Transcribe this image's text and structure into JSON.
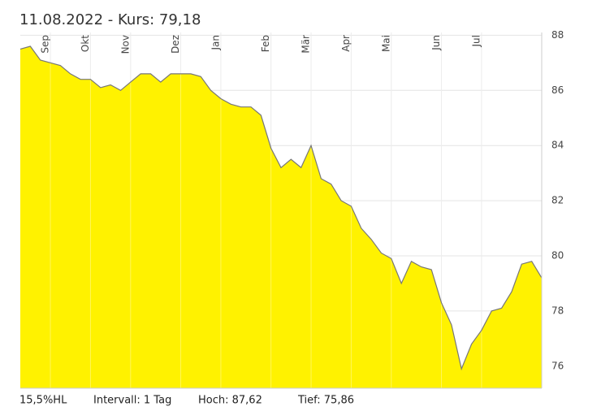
{
  "chart_data": {
    "type": "area",
    "title": "11.08.2022  -  Kurs: 79,18",
    "categories": [
      null,
      null,
      null,
      "Sep",
      null,
      null,
      null,
      "Okt",
      null,
      null,
      null,
      "Nov",
      null,
      null,
      null,
      null,
      "Dez",
      null,
      null,
      null,
      "Jan",
      null,
      null,
      null,
      null,
      "Feb",
      null,
      null,
      null,
      "Mär",
      null,
      null,
      null,
      "Apr",
      null,
      null,
      null,
      "Mai",
      null,
      null,
      null,
      null,
      "Jun",
      null,
      null,
      null,
      "Jul",
      null,
      null,
      null,
      null,
      null,
      null
    ],
    "values": [
      87.5,
      87.6,
      87.1,
      87.0,
      86.9,
      86.6,
      86.4,
      86.4,
      86.1,
      86.2,
      86.0,
      86.3,
      86.6,
      86.6,
      86.3,
      86.6,
      86.6,
      86.6,
      86.5,
      86.0,
      85.7,
      85.5,
      85.4,
      85.4,
      85.1,
      83.9,
      83.2,
      83.5,
      83.2,
      84.0,
      82.8,
      82.6,
      82.0,
      81.8,
      81.0,
      80.6,
      80.1,
      79.9,
      79.0,
      79.8,
      79.6,
      79.5,
      78.3,
      77.5,
      75.9,
      76.8,
      77.3,
      78.0,
      78.1,
      78.7,
      79.7,
      79.8,
      79.2
    ],
    "color": "#fff200",
    "line_color": "#777777",
    "ylim": [
      75.2,
      88.1
    ],
    "yticks": [
      76,
      78,
      80,
      82,
      84,
      86,
      88
    ],
    "grid": true,
    "footer": [
      "15,5%HL",
      "Intervall: 1 Tag",
      "Hoch:  87,62",
      "Tief:  75,86"
    ]
  }
}
